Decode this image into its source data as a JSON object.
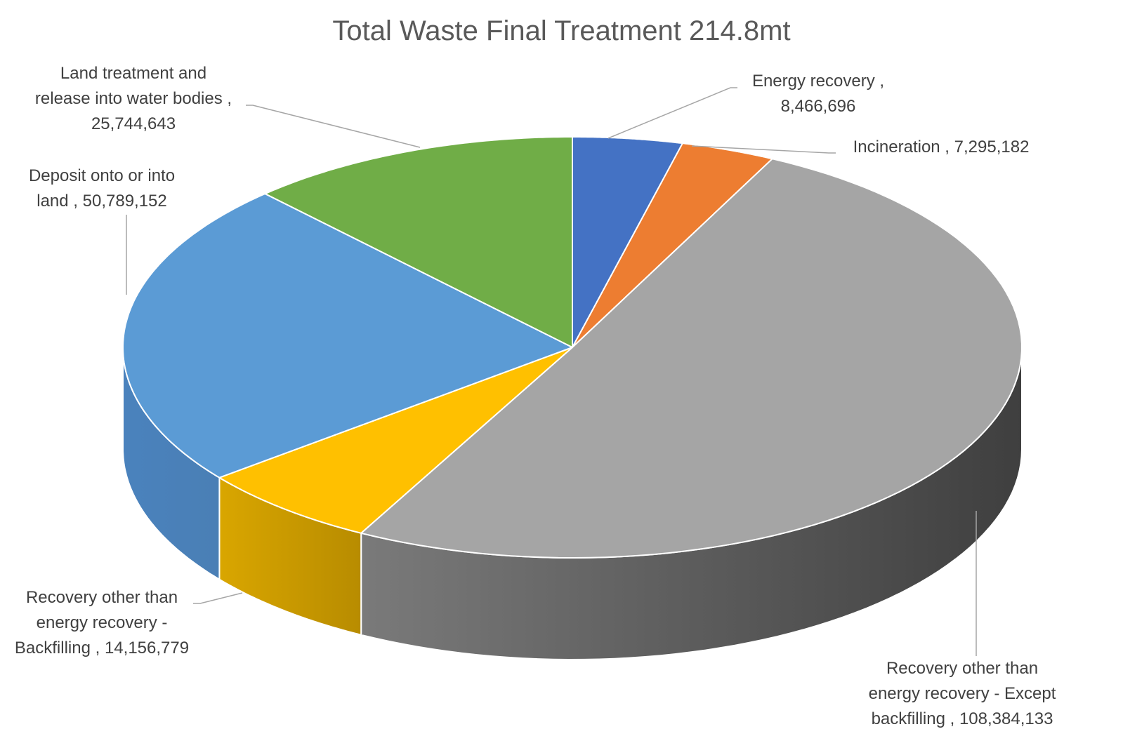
{
  "chart_data": {
    "type": "pie",
    "title": "Total Waste Final Treatment 214.8mt",
    "slices": [
      {
        "name": "Energy recovery",
        "value": 8466696,
        "color": "#4472C4",
        "label_lines": [
          "Energy recovery ,",
          "8,466,696"
        ]
      },
      {
        "name": "Incineration",
        "value": 7295182,
        "color": "#ED7D31",
        "label_lines": [
          "Incineration , 7,295,182"
        ]
      },
      {
        "name": "Recovery other than energy recovery - Except backfilling",
        "value": 108384133,
        "color": "#A5A5A5",
        "label_lines": [
          "Recovery other than",
          "energy recovery - Except",
          "backfilling , 108,384,133"
        ]
      },
      {
        "name": "Recovery other than energy recovery - Backfilling",
        "value": 14156779,
        "color": "#FFC000",
        "label_lines": [
          "Recovery other than",
          "energy recovery -",
          "Backfilling , 14,156,779"
        ]
      },
      {
        "name": "Deposit onto or into land",
        "value": 50789152,
        "color": "#5B9BD5",
        "label_lines": [
          "Deposit onto or into",
          "land , 50,789,152"
        ]
      },
      {
        "name": "Land treatment and release into water bodies",
        "value": 25744643,
        "color": "#70AD47",
        "label_lines": [
          "Land treatment and",
          "release into water bodies ,",
          "25,744,643"
        ]
      }
    ],
    "legend": "none",
    "style": "3d"
  }
}
